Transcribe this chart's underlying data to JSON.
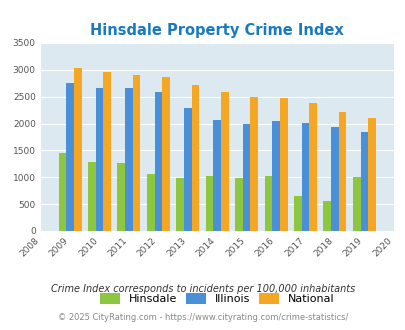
{
  "title": "Hinsdale Property Crime Index",
  "plot_years": [
    2009,
    2010,
    2011,
    2012,
    2013,
    2014,
    2015,
    2016,
    2017,
    2018,
    2019
  ],
  "all_tick_years": [
    2008,
    2009,
    2010,
    2011,
    2012,
    2013,
    2014,
    2015,
    2016,
    2017,
    2018,
    2019,
    2020
  ],
  "hinsdale": [
    1460,
    1290,
    1270,
    1060,
    990,
    1020,
    990,
    1030,
    650,
    560,
    1010
  ],
  "illinois": [
    2750,
    2670,
    2670,
    2590,
    2280,
    2060,
    1990,
    2050,
    2010,
    1940,
    1840
  ],
  "national": [
    3040,
    2950,
    2910,
    2860,
    2720,
    2590,
    2500,
    2480,
    2380,
    2210,
    2110
  ],
  "hinsdale_color": "#8dc63f",
  "illinois_color": "#4a90d9",
  "national_color": "#f5a623",
  "bg_color": "#dce9f0",
  "ylim": [
    0,
    3500
  ],
  "yticks": [
    0,
    500,
    1000,
    1500,
    2000,
    2500,
    3000,
    3500
  ],
  "subtitle": "Crime Index corresponds to incidents per 100,000 inhabitants",
  "footer": "© 2025 CityRating.com - https://www.cityrating.com/crime-statistics/",
  "title_color": "#1a7abf",
  "subtitle_color": "#333333",
  "footer_color": "#888888",
  "legend_labels": [
    "Hinsdale",
    "Illinois",
    "National"
  ]
}
